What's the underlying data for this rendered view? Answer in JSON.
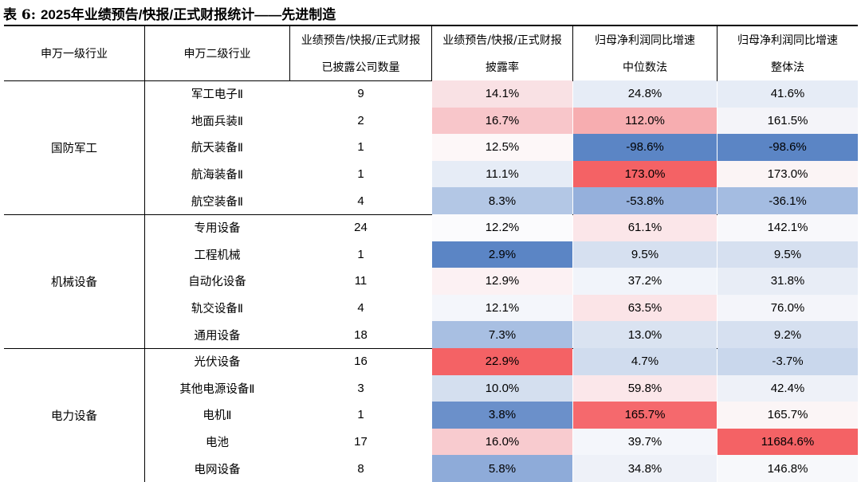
{
  "title": {
    "prefix": "表 6:",
    "text": "2025年业绩预告/快报/正式财报统计——先进制造"
  },
  "headers": {
    "col1": "申万一级行业",
    "col2": "申万二级行业",
    "col3": [
      "业绩预告/快报/正式财报",
      "已披露公司数量"
    ],
    "col4": [
      "业绩预告/快报/正式财报",
      "披露率"
    ],
    "col5": [
      "归母净利润同比增速",
      "中位数法"
    ],
    "col6": [
      "归母净利润同比增速",
      "整体法"
    ]
  },
  "groups": [
    {
      "name": "国防军工",
      "rows": [
        {
          "sub": "军工电子Ⅱ",
          "count": "9",
          "rate": "14.1%",
          "median": "24.8%",
          "overall": "41.6%",
          "bg_rate": "#f9e1e4",
          "bg_median": "#e6ecf6",
          "bg_overall": "#e6ecf6"
        },
        {
          "sub": "地面兵装Ⅱ",
          "count": "2",
          "rate": "16.7%",
          "median": "112.0%",
          "overall": "161.5%",
          "bg_rate": "#f8c6ca",
          "bg_median": "#f7adb0",
          "bg_overall": "#f4f4f9"
        },
        {
          "sub": "航天装备Ⅱ",
          "count": "1",
          "rate": "12.5%",
          "median": "-98.6%",
          "overall": "-98.6%",
          "bg_rate": "#fdf7f8",
          "bg_median": "#5b85c5",
          "bg_overall": "#5b85c5"
        },
        {
          "sub": "航海装备Ⅱ",
          "count": "1",
          "rate": "11.1%",
          "median": "173.0%",
          "overall": "173.0%",
          "bg_rate": "#e6ecf6",
          "bg_median": "#f46265",
          "bg_overall": "#fbf4f5"
        },
        {
          "sub": "航空装备Ⅱ",
          "count": "4",
          "rate": "8.3%",
          "median": "-53.8%",
          "overall": "-36.1%",
          "bg_rate": "#b3c7e5",
          "bg_median": "#95b0dc",
          "bg_overall": "#a4bce1"
        }
      ]
    },
    {
      "name": "机械设备",
      "rows": [
        {
          "sub": "专用设备",
          "count": "24",
          "rate": "12.2%",
          "median": "61.1%",
          "overall": "142.1%",
          "bg_rate": "#fbfbfd",
          "bg_median": "#fbe6e9",
          "bg_overall": "#f8f8fb"
        },
        {
          "sub": "工程机械",
          "count": "1",
          "rate": "2.9%",
          "median": "9.5%",
          "overall": "9.5%",
          "bg_rate": "#5b85c5",
          "bg_median": "#d6e0f0",
          "bg_overall": "#d6e0f0"
        },
        {
          "sub": "自动化设备",
          "count": "11",
          "rate": "12.9%",
          "median": "37.2%",
          "overall": "31.8%",
          "bg_rate": "#fcf1f3",
          "bg_median": "#f1f4fa",
          "bg_overall": "#e8edf6"
        },
        {
          "sub": "轨交设备Ⅱ",
          "count": "4",
          "rate": "12.1%",
          "median": "63.5%",
          "overall": "76.0%",
          "bg_rate": "#f4f6fb",
          "bg_median": "#fbe4e7",
          "bg_overall": "#f4f5fa"
        },
        {
          "sub": "通用设备",
          "count": "18",
          "rate": "7.3%",
          "median": "13.0%",
          "overall": "9.2%",
          "bg_rate": "#a8bfe2",
          "bg_median": "#dae3f1",
          "bg_overall": "#d6e0f0"
        }
      ]
    },
    {
      "name": "电力设备",
      "rows": [
        {
          "sub": "光伏设备",
          "count": "16",
          "rate": "22.9%",
          "median": "4.7%",
          "overall": "-3.7%",
          "bg_rate": "#f46265",
          "bg_median": "#d0dcee",
          "bg_overall": "#c9d7ec"
        },
        {
          "sub": "其他电源设备Ⅱ",
          "count": "3",
          "rate": "10.0%",
          "median": "59.8%",
          "overall": "42.4%",
          "bg_rate": "#d4dfef",
          "bg_median": "#fbe7ea",
          "bg_overall": "#eef1f8"
        },
        {
          "sub": "电机Ⅱ",
          "count": "1",
          "rate": "3.8%",
          "median": "165.7%",
          "overall": "165.7%",
          "bg_rate": "#6b90ca",
          "bg_median": "#f5696d",
          "bg_overall": "#fbf5f6"
        },
        {
          "sub": "电池",
          "count": "17",
          "rate": "16.0%",
          "median": "39.7%",
          "overall": "11684.6%",
          "bg_rate": "#f8cbcf",
          "bg_median": "#f4f6fb",
          "bg_overall": "#f46265"
        },
        {
          "sub": "电网设备",
          "count": "8",
          "rate": "5.8%",
          "median": "34.8%",
          "overall": "146.8%",
          "bg_rate": "#8eabd9",
          "bg_median": "#eef1f8",
          "bg_overall": "#f7f8fb"
        }
      ]
    }
  ]
}
